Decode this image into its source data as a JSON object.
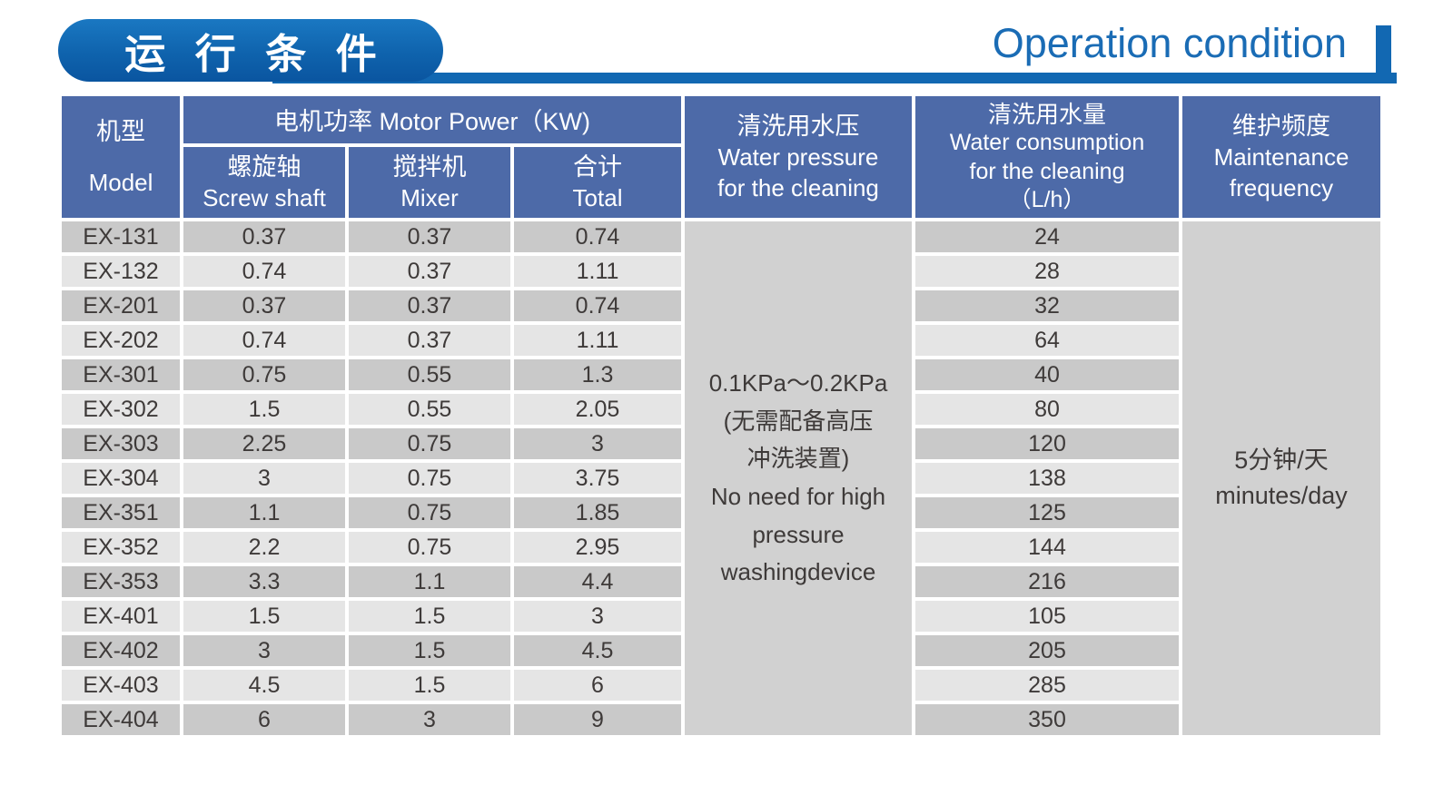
{
  "header": {
    "title_zh": "运 行 条 件",
    "title_en": "Operation condition"
  },
  "colors": {
    "accent_blue": "#1268b2",
    "title_pill_gradient_top": "#1a78c2",
    "title_pill_gradient_bottom": "#0a55a0",
    "title_en_text": "#1a6cb5",
    "table_header_blue": "#4d6aa8",
    "row_stripe_dark": "#c9c9c9",
    "row_stripe_light": "#e5e5e5",
    "merged_cell_gray": "#d1d1d1",
    "body_text": "#3e3a39"
  },
  "table": {
    "columns": {
      "model": [
        "机型",
        "Model"
      ],
      "motor_power_group": "电机功率  Motor Power（KW)",
      "screw_shaft": [
        "螺旋轴",
        "Screw shaft"
      ],
      "mixer": [
        "搅拌机",
        "Mixer"
      ],
      "total": [
        "合计",
        "Total"
      ],
      "water_pressure": [
        "清洗用水压",
        "Water pressure",
        "for the cleaning"
      ],
      "water_consumption": [
        "清洗用水量",
        "Water consumption",
        "for the cleaning",
        "（L/h）"
      ],
      "maintenance": [
        "维护频度",
        "Maintenance",
        "frequency"
      ]
    },
    "rows": [
      [
        "EX-131",
        "0.37",
        "0.37",
        "0.74",
        "24"
      ],
      [
        "EX-132",
        "0.74",
        "0.37",
        "1.11",
        "28"
      ],
      [
        "EX-201",
        "0.37",
        "0.37",
        "0.74",
        "32"
      ],
      [
        "EX-202",
        "0.74",
        "0.37",
        "1.11",
        "64"
      ],
      [
        "EX-301",
        "0.75",
        "0.55",
        "1.3",
        "40"
      ],
      [
        "EX-302",
        "1.5",
        "0.55",
        "2.05",
        "80"
      ],
      [
        "EX-303",
        "2.25",
        "0.75",
        "3",
        "120"
      ],
      [
        "EX-304",
        "3",
        "0.75",
        "3.75",
        "138"
      ],
      [
        "EX-351",
        "1.1",
        "0.75",
        "1.85",
        "125"
      ],
      [
        "EX-352",
        "2.2",
        "0.75",
        "2.95",
        "144"
      ],
      [
        "EX-353",
        "3.3",
        "1.1",
        "4.4",
        "216"
      ],
      [
        "EX-401",
        "1.5",
        "1.5",
        "3",
        "105"
      ],
      [
        "EX-402",
        "3",
        "1.5",
        "4.5",
        "205"
      ],
      [
        "EX-403",
        "4.5",
        "1.5",
        "6",
        "285"
      ],
      [
        "EX-404",
        "6",
        "3",
        "9",
        "350"
      ]
    ],
    "water_pressure_note": [
      "0.1KPa～0.2KPa",
      "(无需配备高压",
      "冲洗装置)",
      "No need for high",
      "pressure",
      "washingdevice"
    ],
    "maintenance_value": [
      "5分钟/天",
      "minutes/day"
    ]
  }
}
